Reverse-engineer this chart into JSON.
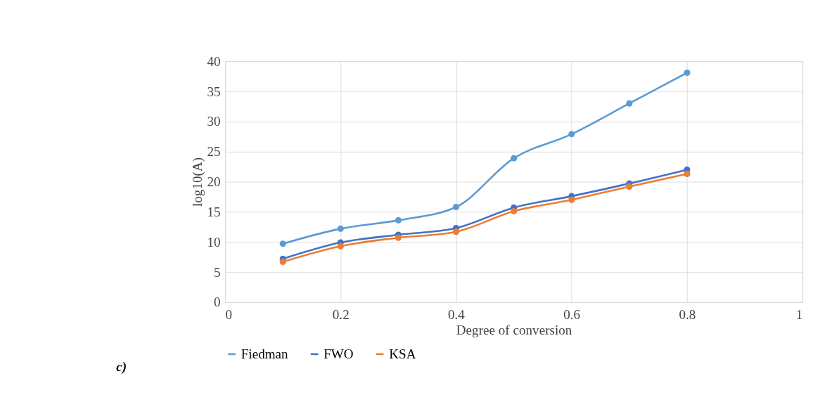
{
  "chart_data": {
    "type": "line",
    "xlabel": "Degree of conversion",
    "ylabel": "log10(A)",
    "x": [
      0.1,
      0.2,
      0.3,
      0.4,
      0.5,
      0.6,
      0.7,
      0.8
    ],
    "series": [
      {
        "name": "Fiedman",
        "color": "#5b9bd5",
        "values": [
          9.7,
          12.2,
          13.6,
          15.8,
          23.9,
          27.9,
          33.0,
          38.1
        ]
      },
      {
        "name": "FWO",
        "color": "#4472c4",
        "values": [
          7.2,
          9.9,
          11.2,
          12.3,
          15.7,
          17.6,
          19.7,
          22.0
        ]
      },
      {
        "name": "KSA",
        "color": "#ed7d31",
        "values": [
          6.7,
          9.3,
          10.7,
          11.7,
          15.1,
          17.0,
          19.2,
          21.3
        ]
      }
    ],
    "xlim": [
      0,
      1
    ],
    "xticks": [
      0,
      0.2,
      0.4,
      0.6,
      0.8,
      1
    ],
    "ylim": [
      0,
      40
    ],
    "yticks": [
      0,
      5,
      10,
      15,
      20,
      25,
      30,
      35,
      40
    ],
    "grid": true,
    "legend": "bottom",
    "marker": "circle",
    "line_style": "solid",
    "annotations": [
      "c)"
    ]
  }
}
